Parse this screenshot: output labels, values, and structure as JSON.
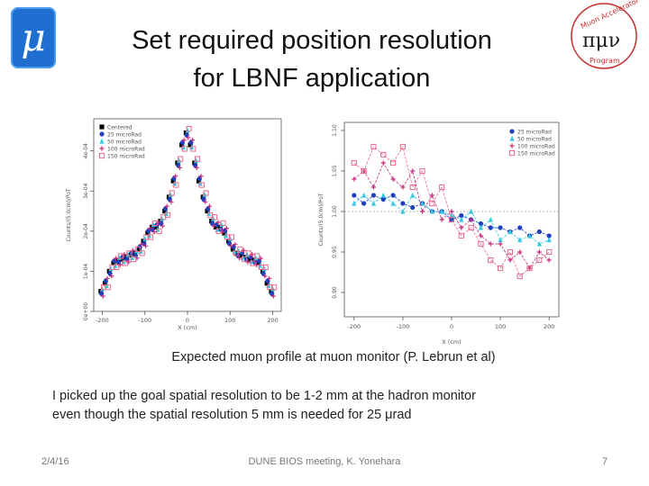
{
  "logos": {
    "left": {
      "glyph": "μ",
      "icon": "mu-logo-icon"
    },
    "right": {
      "icon": "muon-accelerator-program-logo-icon",
      "text_lines": [
        "Muon Accelerator",
        "Program"
      ],
      "glyphs": "πμν"
    }
  },
  "slide": {
    "title_line1": "Set required position resolution",
    "title_line2": "for LBNF application",
    "caption": "Expected muon profile at muon monitor (P. Lebrun et al)",
    "body_line1": "I picked up the goal spatial resolution to be 1-2 mm at the hadron monitor",
    "body_line2": "even though the spatial resolution 5 mm is needed for 25 μrad"
  },
  "footer": {
    "date": "2/4/16",
    "center": "DUNE BIOS meeting, K. Yonehara",
    "page": "7"
  },
  "colors": {
    "black": "#000000",
    "blue": "#1f3fbf",
    "cyan": "#33c8e0",
    "magenta": "#c0307a",
    "pink": "#e86a8a"
  },
  "chart_data": [
    {
      "type": "scatter",
      "title": "",
      "xlabel": "X (cm)",
      "ylabel": "Counts/(5.0cm)/PoT",
      "xlim": [
        -220,
        220
      ],
      "ylim": [
        0,
        0.00048
      ],
      "x_ticks": [
        "-200",
        "-100",
        "0",
        "100",
        "200"
      ],
      "y_ticks": [
        "0e+00",
        "1e-04",
        "2e-04",
        "3e-04",
        "4e-04"
      ],
      "legend_position": "top-left",
      "series": [
        {
          "name": "Centered",
          "color": "#000000",
          "marker": "square"
        },
        {
          "name": "25 microRad",
          "color": "#1f3fbf",
          "marker": "circle"
        },
        {
          "name": "50 microRad",
          "color": "#33c8e0",
          "marker": "triangle"
        },
        {
          "name": "100 microRad",
          "color": "#c0307a",
          "marker": "plus"
        },
        {
          "name": "150 microRad",
          "color": "#e86a8a",
          "marker": "square-open"
        }
      ],
      "x": [
        -200,
        -190,
        -180,
        -170,
        -160,
        -150,
        -140,
        -130,
        -120,
        -110,
        -100,
        -90,
        -80,
        -70,
        -60,
        -50,
        -40,
        -30,
        -20,
        -10,
        0,
        10,
        20,
        30,
        40,
        50,
        60,
        70,
        80,
        90,
        100,
        110,
        120,
        130,
        140,
        150,
        160,
        170,
        180,
        190,
        200
      ],
      "profile": [
        5e-05,
        7e-05,
        0.0001,
        0.00012,
        0.000128,
        0.00013,
        0.000135,
        0.00014,
        0.000145,
        0.000155,
        0.000175,
        0.000195,
        0.00021,
        0.00021,
        0.000225,
        0.00025,
        0.000285,
        0.000325,
        0.00037,
        0.000415,
        0.000445,
        0.000415,
        0.00037,
        0.000325,
        0.000285,
        0.00025,
        0.000225,
        0.00021,
        0.00021,
        0.000195,
        0.000175,
        0.000155,
        0.000145,
        0.00014,
        0.000135,
        0.00013,
        0.000128,
        0.00012,
        0.0001,
        7e-05,
        5e-05
      ]
    },
    {
      "type": "line",
      "title": "",
      "xlabel": "X (cm)",
      "ylabel": "Counts/(5.0cm)/PoT",
      "xlim": [
        -220,
        220
      ],
      "ylim": [
        0.87,
        1.11
      ],
      "x_ticks": [
        "-200",
        "-100",
        "0",
        "100",
        "200"
      ],
      "y_ticks": [
        "0.90",
        "0.95",
        "1.00",
        "1.05",
        "1.10"
      ],
      "reference_line": 1.0,
      "legend_position": "top-right",
      "x": [
        -200,
        -180,
        -160,
        -140,
        -120,
        -100,
        -80,
        -60,
        -40,
        -20,
        0,
        20,
        40,
        60,
        80,
        100,
        120,
        140,
        160,
        180,
        200
      ],
      "series": [
        {
          "name": "25 microRad",
          "color": "#1f3fbf",
          "marker": "circle",
          "values": [
            1.02,
            1.01,
            1.02,
            1.015,
            1.02,
            1.01,
            1.005,
            1.01,
            1.0,
            1.0,
            0.99,
            0.995,
            0.99,
            0.985,
            0.98,
            0.98,
            0.975,
            0.98,
            0.97,
            0.975,
            0.97
          ]
        },
        {
          "name": "50 microRad",
          "color": "#33c8e0",
          "marker": "triangle",
          "values": [
            1.01,
            1.02,
            1.01,
            1.02,
            1.01,
            1.0,
            1.02,
            1.01,
            1.0,
            1.0,
            0.995,
            0.99,
            1.0,
            0.98,
            0.99,
            0.965,
            0.975,
            0.965,
            0.97,
            0.96,
            0.965
          ]
        },
        {
          "name": "100 microRad",
          "color": "#c0307a",
          "marker": "plus",
          "values": [
            1.04,
            1.05,
            1.03,
            1.06,
            1.04,
            1.03,
            1.05,
            1.0,
            1.02,
            0.99,
            1.0,
            0.98,
            0.99,
            0.97,
            0.96,
            0.96,
            0.94,
            0.95,
            0.93,
            0.95,
            0.94
          ]
        },
        {
          "name": "150 microRad",
          "color": "#e86a8a",
          "marker": "square-open",
          "values": [
            1.06,
            1.05,
            1.08,
            1.07,
            1.06,
            1.08,
            1.03,
            1.05,
            1.01,
            1.03,
            0.99,
            0.97,
            0.98,
            0.96,
            0.94,
            0.93,
            0.95,
            0.92,
            0.93,
            0.94,
            0.95
          ]
        }
      ]
    }
  ]
}
